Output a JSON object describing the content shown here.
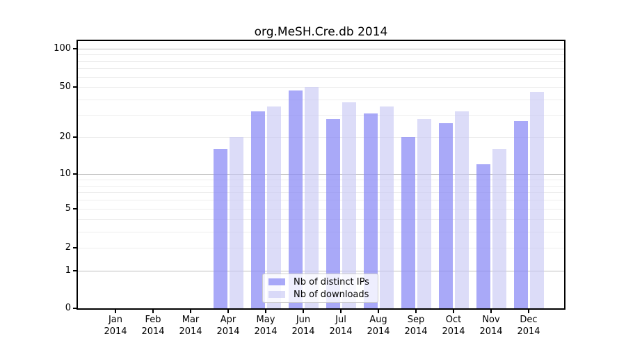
{
  "title": "org.MeSH.Cre.db 2014",
  "chart_data": {
    "type": "bar",
    "title": "org.MeSH.Cre.db 2014",
    "categories": [
      "Jan 2014",
      "Feb 2014",
      "Mar 2014",
      "Apr 2014",
      "May 2014",
      "Jun 2014",
      "Jul 2014",
      "Aug 2014",
      "Sep 2014",
      "Oct 2014",
      "Nov 2014",
      "Dec 2014"
    ],
    "series": [
      {
        "name": "Nb of distinct IPs",
        "fill": "#8989f5",
        "alpha": 0.73,
        "apparent_color": "#a9a9f8",
        "values": [
          0,
          0,
          0,
          16,
          32,
          47,
          28,
          31,
          20,
          26,
          12,
          27
        ]
      },
      {
        "name": "Nb of downloads",
        "fill": "#c6c6f4",
        "alpha": 0.62,
        "apparent_color": "#dbdbf8",
        "values": [
          0,
          0,
          0,
          20,
          35,
          50,
          38,
          35,
          28,
          32,
          16,
          46
        ]
      }
    ],
    "xlabel": "",
    "ylabel": "",
    "yticks": [
      0,
      1,
      2,
      5,
      10,
      20,
      50,
      100
    ],
    "yscale": "log-like (log(1+x))",
    "ylim": [
      0,
      119
    ],
    "grid": true,
    "minor_grid_values": [
      2,
      3,
      4,
      5,
      6,
      7,
      8,
      9,
      20,
      30,
      40,
      50,
      60,
      70,
      80,
      90
    ],
    "major_grid_values": [
      1,
      10,
      100
    ],
    "legend": {
      "position": "lower center",
      "labels": [
        "Nb of distinct IPs",
        "Nb of downloads"
      ]
    }
  }
}
